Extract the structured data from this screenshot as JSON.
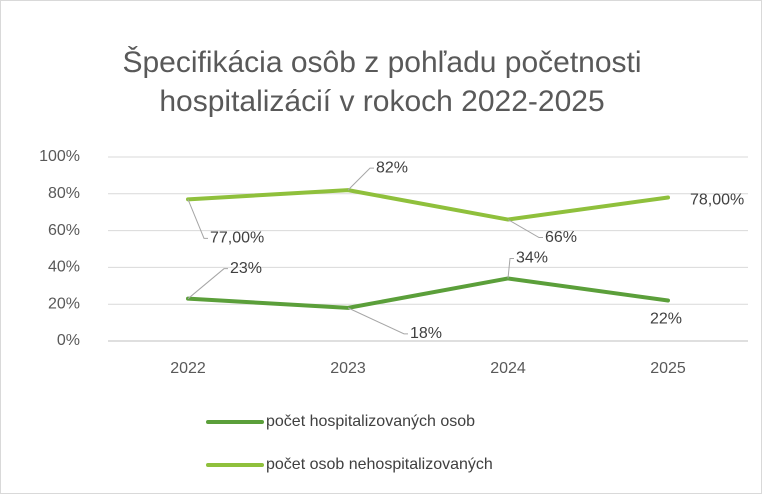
{
  "chart_data": {
    "type": "line",
    "title": [
      "Špecifikácia osôb z pohľadu početnosti",
      "hospitalizácií v rokoch 2022-2025"
    ],
    "categories": [
      "2022",
      "2023",
      "2024",
      "2025"
    ],
    "series": [
      {
        "name": "počet hospitalizovaných osob",
        "color": "#5b9f3a",
        "values": [
          23,
          18,
          34,
          22
        ],
        "value_labels": [
          "23%",
          "18%",
          "34%",
          "22%"
        ]
      },
      {
        "name": "počet osob nehospitalizovaných",
        "color": "#8fc03c",
        "values": [
          77,
          82,
          66,
          78
        ],
        "value_labels": [
          "77,00%",
          "82%",
          "66%",
          "78,00%"
        ]
      }
    ],
    "ylim": [
      0,
      100
    ],
    "yticks": [
      {
        "value": 0,
        "label": "0%"
      },
      {
        "value": 20,
        "label": "20%"
      },
      {
        "value": 40,
        "label": "40%"
      },
      {
        "value": 60,
        "label": "60%"
      },
      {
        "value": 80,
        "label": "80%"
      },
      {
        "value": 100,
        "label": "100%"
      }
    ],
    "grid": true
  }
}
